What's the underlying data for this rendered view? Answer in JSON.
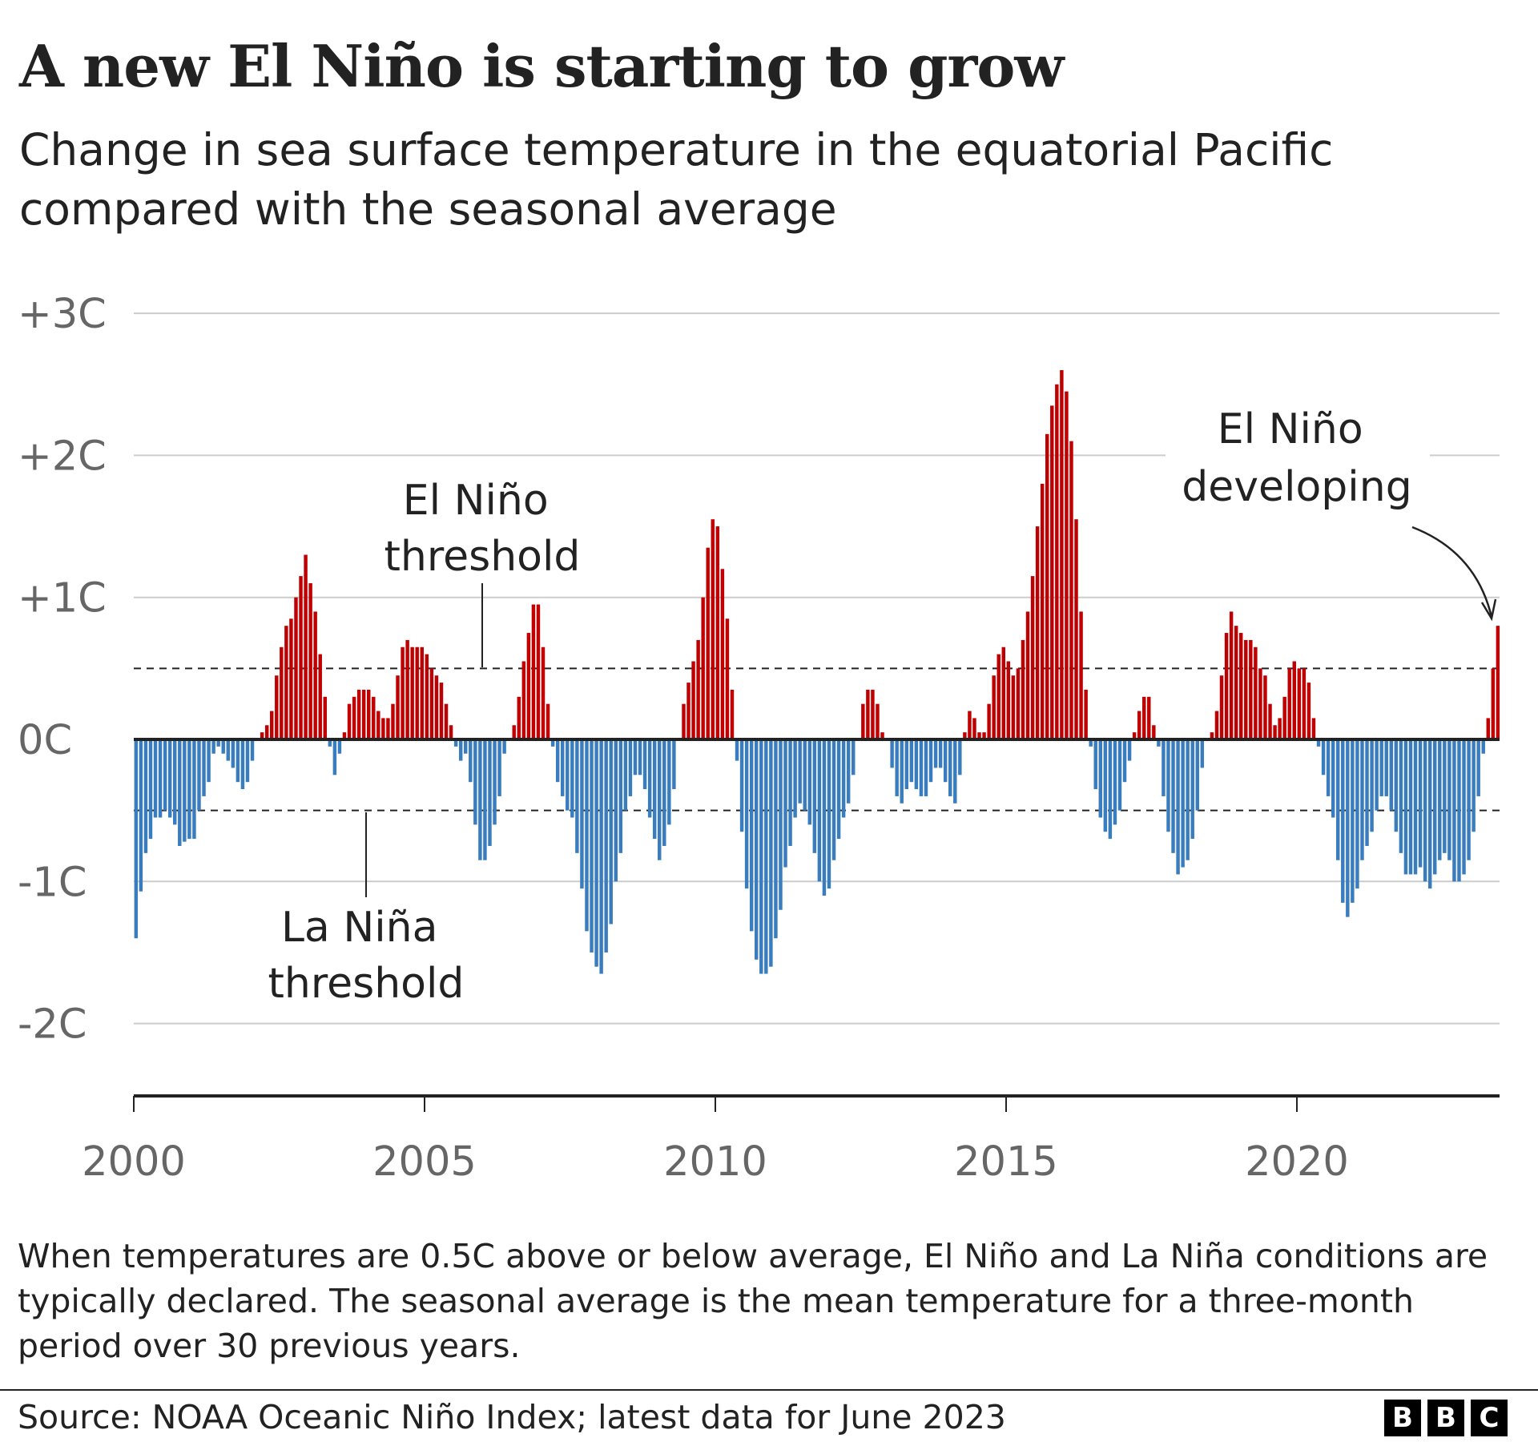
{
  "title": "A new El Niño is starting to grow",
  "subtitle": "Change in sea surface temperature in the equatorial Pacific compared with the seasonal average",
  "footnote": "When temperatures are 0.5C above or below average, El Niño and La Niña conditions are typically declared. The seasonal average is the mean temperature for a three-month period over 30 previous years.",
  "source": "Source: NOAA Oceanic Niño Index; latest data for June 2023",
  "logo": [
    "B",
    "B",
    "C"
  ],
  "colors": {
    "positive": "#c00000",
    "negative": "#3a7dbf",
    "grid": "#cccccc",
    "axis": "#222222"
  },
  "chart_data": {
    "type": "bar",
    "x_start": "2000-01",
    "x_frequency": "monthly",
    "x_end": "2023-06",
    "ylim": [
      -2.5,
      3
    ],
    "yticks": [
      {
        "value": 3,
        "label": "+3C"
      },
      {
        "value": 2,
        "label": "+2C"
      },
      {
        "value": 1,
        "label": "+1C"
      },
      {
        "value": 0,
        "label": "0C"
      },
      {
        "value": -1,
        "label": "-1C"
      },
      {
        "value": -2,
        "label": "-2C"
      }
    ],
    "xticks": [
      {
        "value": 2000,
        "label": "2000"
      },
      {
        "value": 2005,
        "label": "2005"
      },
      {
        "value": 2010,
        "label": "2010"
      },
      {
        "value": 2015,
        "label": "2015"
      },
      {
        "value": 2020,
        "label": "2020"
      }
    ],
    "grid": true,
    "thresholds": [
      {
        "value": 0.5,
        "label": [
          "El Niño",
          "threshold"
        ]
      },
      {
        "value": -0.5,
        "label": [
          "La Niña",
          "threshold"
        ]
      }
    ],
    "annotation": {
      "label": [
        "El Niño",
        "developing"
      ]
    },
    "values": [
      -1.4,
      -1.07,
      -0.8,
      -0.7,
      -0.55,
      -0.55,
      -0.5,
      -0.55,
      -0.6,
      -0.75,
      -0.72,
      -0.7,
      -0.7,
      -0.5,
      -0.4,
      -0.3,
      -0.1,
      -0.05,
      -0.1,
      -0.15,
      -0.2,
      -0.3,
      -0.35,
      -0.3,
      -0.15,
      0.0,
      0.05,
      0.1,
      0.2,
      0.45,
      0.65,
      0.8,
      0.85,
      1.0,
      1.15,
      1.3,
      1.1,
      0.9,
      0.6,
      0.3,
      -0.05,
      -0.25,
      -0.1,
      0.05,
      0.25,
      0.3,
      0.35,
      0.35,
      0.35,
      0.3,
      0.2,
      0.15,
      0.15,
      0.25,
      0.45,
      0.65,
      0.7,
      0.65,
      0.65,
      0.65,
      0.6,
      0.5,
      0.45,
      0.4,
      0.25,
      0.1,
      -0.05,
      -0.15,
      -0.1,
      -0.3,
      -0.6,
      -0.85,
      -0.85,
      -0.75,
      -0.6,
      -0.4,
      -0.1,
      0.0,
      0.1,
      0.3,
      0.55,
      0.75,
      0.95,
      0.95,
      0.65,
      0.25,
      -0.05,
      -0.3,
      -0.4,
      -0.5,
      -0.55,
      -0.8,
      -1.05,
      -1.35,
      -1.5,
      -1.6,
      -1.65,
      -1.5,
      -1.3,
      -1.0,
      -0.8,
      -0.5,
      -0.4,
      -0.25,
      -0.25,
      -0.35,
      -0.55,
      -0.7,
      -0.85,
      -0.75,
      -0.6,
      -0.35,
      0.0,
      0.25,
      0.4,
      0.55,
      0.7,
      1.0,
      1.35,
      1.55,
      1.5,
      1.2,
      0.85,
      0.35,
      -0.15,
      -0.65,
      -1.05,
      -1.35,
      -1.55,
      -1.65,
      -1.65,
      -1.6,
      -1.4,
      -1.2,
      -0.9,
      -0.75,
      -0.55,
      -0.45,
      -0.5,
      -0.6,
      -0.8,
      -1.0,
      -1.1,
      -1.05,
      -0.85,
      -0.7,
      -0.55,
      -0.45,
      -0.25,
      0.0,
      0.25,
      0.35,
      0.35,
      0.25,
      0.05,
      0.0,
      -0.2,
      -0.4,
      -0.45,
      -0.35,
      -0.3,
      -0.35,
      -0.4,
      -0.4,
      -0.3,
      -0.2,
      -0.2,
      -0.3,
      -0.4,
      -0.45,
      -0.25,
      0.05,
      0.2,
      0.15,
      0.05,
      0.05,
      0.25,
      0.45,
      0.6,
      0.65,
      0.55,
      0.45,
      0.5,
      0.7,
      0.9,
      1.15,
      1.5,
      1.8,
      2.15,
      2.35,
      2.5,
      2.6,
      2.45,
      2.1,
      1.55,
      0.9,
      0.35,
      -0.05,
      -0.35,
      -0.55,
      -0.65,
      -0.7,
      -0.6,
      -0.5,
      -0.3,
      -0.15,
      0.05,
      0.2,
      0.3,
      0.3,
      0.1,
      -0.05,
      -0.4,
      -0.65,
      -0.8,
      -0.95,
      -0.9,
      -0.85,
      -0.7,
      -0.5,
      -0.2,
      0.0,
      0.05,
      0.2,
      0.45,
      0.75,
      0.9,
      0.8,
      0.75,
      0.7,
      0.7,
      0.65,
      0.5,
      0.45,
      0.25,
      0.1,
      0.15,
      0.3,
      0.5,
      0.55,
      0.5,
      0.5,
      0.4,
      0.15,
      -0.05,
      -0.25,
      -0.4,
      -0.55,
      -0.85,
      -1.15,
      -1.25,
      -1.15,
      -1.05,
      -0.85,
      -0.75,
      -0.65,
      -0.5,
      -0.4,
      -0.4,
      -0.5,
      -0.65,
      -0.8,
      -0.95,
      -0.95,
      -0.95,
      -0.9,
      -1.0,
      -1.05,
      -0.95,
      -0.85,
      -0.8,
      -0.85,
      -1.0,
      -1.0,
      -0.95,
      -0.85,
      -0.65,
      -0.4,
      -0.1,
      0.15,
      0.5,
      0.8
    ]
  }
}
